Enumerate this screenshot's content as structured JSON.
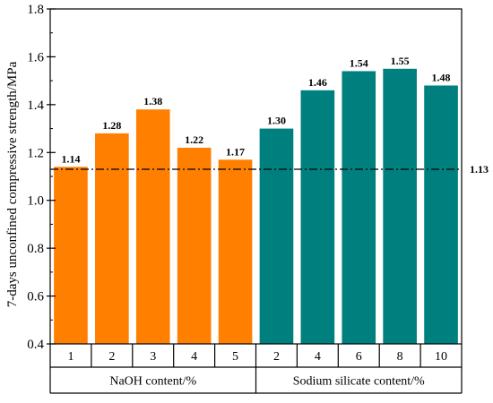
{
  "chart_data": {
    "type": "bar",
    "ylabel": "7-days unconfined compressive strength/MPa",
    "ylim": [
      0.4,
      1.8
    ],
    "yticks": [
      0.4,
      0.6,
      0.8,
      1.0,
      1.2,
      1.4,
      1.6,
      1.8
    ],
    "ytick_labels": [
      "0.4",
      "0.6",
      "0.8",
      "1.0",
      "1.2",
      "1.4",
      "1.6",
      "1.8"
    ],
    "groups": [
      {
        "label": "NaOH content/%",
        "color": "#FF7F00",
        "categories": [
          "1",
          "2",
          "3",
          "4",
          "5"
        ],
        "values": [
          1.14,
          1.28,
          1.38,
          1.22,
          1.17
        ],
        "value_labels": [
          "1.14",
          "1.28",
          "1.38",
          "1.22",
          "1.17"
        ]
      },
      {
        "label": "Sodium silicate content/%",
        "color": "#007F7F",
        "categories": [
          "2",
          "4",
          "6",
          "8",
          "10"
        ],
        "values": [
          1.3,
          1.46,
          1.54,
          1.55,
          1.48
        ],
        "value_labels": [
          "1.30",
          "1.46",
          "1.54",
          "1.55",
          "1.48"
        ]
      }
    ],
    "reference_line": {
      "value": 1.13,
      "label": "1.13",
      "style": "dash-dot"
    }
  }
}
